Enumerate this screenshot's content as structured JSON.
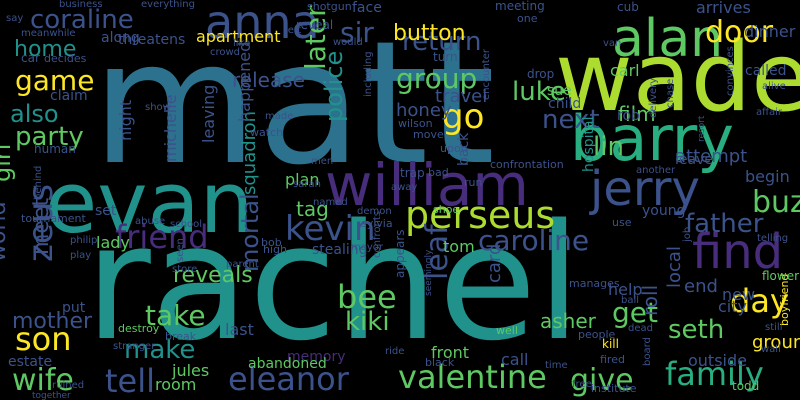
{
  "cloud": {
    "background": "#000000",
    "palette": [
      "#440154",
      "#472d7b",
      "#3b528b",
      "#2c728e",
      "#21918c",
      "#28ae80",
      "#5ec962",
      "#addc30",
      "#fde725"
    ],
    "words": [
      {
        "text": "matt",
        "color": "#2c728e"
      },
      {
        "text": "rachel",
        "color": "#21918c"
      },
      {
        "text": "wade",
        "color": "#addc30"
      },
      {
        "text": "evan",
        "color": "#21918c"
      },
      {
        "text": "william",
        "color": "#472d7b"
      },
      {
        "text": "barry",
        "color": "#28ae80"
      },
      {
        "text": "alan",
        "color": "#5ec962"
      },
      {
        "text": "anna",
        "color": "#3b528b"
      },
      {
        "text": "find",
        "color": "#472d7b"
      },
      {
        "text": "jerry",
        "color": "#3b528b"
      },
      {
        "text": "perseus",
        "color": "#addc30"
      },
      {
        "text": "family",
        "color": "#28ae80"
      },
      {
        "text": "eleanor",
        "color": "#3b528b"
      },
      {
        "text": "valentine",
        "color": "#5ec962"
      },
      {
        "text": "caroline",
        "color": "#3b528b"
      },
      {
        "text": "friend",
        "color": "#472d7b"
      },
      {
        "text": "kevin",
        "color": "#3b528b"
      },
      {
        "text": "zeus",
        "color": "#3b528b"
      },
      {
        "text": "son",
        "color": "#fde725"
      },
      {
        "text": "tell",
        "color": "#3b528b"
      },
      {
        "text": "wife",
        "color": "#5ec962"
      },
      {
        "text": "coraline",
        "color": "#3b528b"
      },
      {
        "text": "game",
        "color": "#fde725"
      },
      {
        "text": "home",
        "color": "#21918c"
      },
      {
        "text": "sir",
        "color": "#3b528b"
      },
      {
        "text": "return",
        "color": "#3b528b"
      },
      {
        "text": "door",
        "color": "#fde725"
      },
      {
        "text": "luke",
        "color": "#5ec962"
      },
      {
        "text": "group",
        "color": "#5ec962"
      },
      {
        "text": "later",
        "color": "#5ec962"
      },
      {
        "text": "go",
        "color": "#fde725"
      },
      {
        "text": "next",
        "color": "#3b528b"
      },
      {
        "text": "lin",
        "color": "#5ec962"
      },
      {
        "text": "police",
        "color": "#21918c"
      },
      {
        "text": "buzz",
        "color": "#5ec962"
      },
      {
        "text": "father",
        "color": "#3b528b"
      },
      {
        "text": "day",
        "color": "#fde725"
      },
      {
        "text": "seth",
        "color": "#5ec962"
      },
      {
        "text": "give",
        "color": "#5ec962"
      },
      {
        "text": "get",
        "color": "#5ec962"
      },
      {
        "text": "take",
        "color": "#5ec962"
      },
      {
        "text": "make",
        "color": "#21918c"
      },
      {
        "text": "mortal",
        "color": "#3b528b"
      },
      {
        "text": "bee",
        "color": "#5ec962"
      },
      {
        "text": "kiki",
        "color": "#5ec962"
      },
      {
        "text": "leaf",
        "color": "#3b528b"
      },
      {
        "text": "also",
        "color": "#21918c"
      },
      {
        "text": "party",
        "color": "#5ec962"
      },
      {
        "text": "girl",
        "color": "#5ec962"
      },
      {
        "text": "mother",
        "color": "#3b528b"
      },
      {
        "text": "world",
        "color": "#3b528b"
      },
      {
        "text": "meet",
        "color": "#3b528b"
      },
      {
        "text": "button",
        "color": "#fde725"
      },
      {
        "text": "apartment",
        "color": "#fde725"
      },
      {
        "text": "release",
        "color": "#3b528b"
      },
      {
        "text": "squadron",
        "color": "#21918c"
      },
      {
        "text": "reveals",
        "color": "#5ec962"
      },
      {
        "text": "asher",
        "color": "#5ec962"
      },
      {
        "text": "card",
        "color": "#3b528b"
      },
      {
        "text": "roll",
        "color": "#3b528b"
      },
      {
        "text": "end",
        "color": "#3b528b"
      },
      {
        "text": "ground",
        "color": "#fde725"
      },
      {
        "text": "local",
        "color": "#3b528b"
      },
      {
        "text": "honey",
        "color": "#3b528b"
      },
      {
        "text": "travel",
        "color": "#3b528b"
      },
      {
        "text": "film",
        "color": "#5ec962"
      },
      {
        "text": "carl",
        "color": "#5ec962"
      },
      {
        "text": "arrives",
        "color": "#3b528b"
      },
      {
        "text": "dinner",
        "color": "#3b528b"
      },
      {
        "text": "called",
        "color": "#3b528b"
      },
      {
        "text": "michelle",
        "color": "#3b528b"
      },
      {
        "text": "night",
        "color": "#3b528b"
      },
      {
        "text": "leaving",
        "color": "#3b528b"
      },
      {
        "text": "happened",
        "color": "#3b528b"
      },
      {
        "text": "tom",
        "color": "#5ec962"
      },
      {
        "text": "tag",
        "color": "#5ec962"
      },
      {
        "text": "plan",
        "color": "#5ec962"
      },
      {
        "text": "attempt",
        "color": "#3b528b"
      },
      {
        "text": "begin",
        "color": "#3b528b"
      },
      {
        "text": "leave",
        "color": "#3b528b"
      },
      {
        "text": "help",
        "color": "#3b528b"
      },
      {
        "text": "city",
        "color": "#3b528b"
      },
      {
        "text": "new",
        "color": "#3b528b"
      },
      {
        "text": "lady",
        "color": "#5ec962"
      },
      {
        "text": "put",
        "color": "#3b528b"
      },
      {
        "text": "set",
        "color": "#3b528b"
      },
      {
        "text": "jules",
        "color": "#5ec962"
      },
      {
        "text": "room",
        "color": "#5ec962"
      },
      {
        "text": "last",
        "color": "#3b528b"
      },
      {
        "text": "front",
        "color": "#5ec962"
      },
      {
        "text": "call",
        "color": "#3b528b"
      },
      {
        "text": "estate",
        "color": "#3b528b"
      },
      {
        "text": "memory",
        "color": "#472d7b"
      },
      {
        "text": "abandoned",
        "color": "#5ec962"
      },
      {
        "text": "destroy",
        "color": "#5ec962"
      },
      {
        "text": "break",
        "color": "#3b528b"
      },
      {
        "text": "stranger",
        "color": "#3b528b"
      },
      {
        "text": "ruined",
        "color": "#3b528b"
      },
      {
        "text": "together",
        "color": "#3b528b"
      },
      {
        "text": "free",
        "color": "#3b528b"
      },
      {
        "text": "time",
        "color": "#3b528b"
      },
      {
        "text": "black",
        "color": "#3b528b"
      },
      {
        "text": "well",
        "color": "#5ec962"
      },
      {
        "text": "people",
        "color": "#3b528b"
      },
      {
        "text": "kill",
        "color": "#fde725"
      },
      {
        "text": "fired",
        "color": "#3b528b"
      },
      {
        "text": "institute",
        "color": "#3b528b"
      },
      {
        "text": "board",
        "color": "#3b528b"
      },
      {
        "text": "outside",
        "color": "#3b528b"
      },
      {
        "text": "todd",
        "color": "#5ec962"
      },
      {
        "text": "boyfriend",
        "color": "#fde725"
      },
      {
        "text": "wall",
        "color": "#3b528b"
      },
      {
        "text": "still",
        "color": "#3b528b"
      },
      {
        "text": "flower",
        "color": "#5ec962"
      },
      {
        "text": "telling",
        "color": "#3b528b"
      },
      {
        "text": "job",
        "color": "#3b528b"
      },
      {
        "text": "young",
        "color": "#3b528b"
      },
      {
        "text": "use",
        "color": "#3b528b"
      },
      {
        "text": "hospital",
        "color": "#21918c"
      },
      {
        "text": "delivery",
        "color": "#3b528b"
      },
      {
        "text": "another",
        "color": "#3b528b"
      },
      {
        "text": "rob",
        "color": "#3b528b"
      },
      {
        "text": "sue",
        "color": "#5ec962"
      },
      {
        "text": "child",
        "color": "#3b528b"
      },
      {
        "text": "drop",
        "color": "#3b528b"
      },
      {
        "text": "back",
        "color": "#3b528b"
      },
      {
        "text": "confrontation",
        "color": "#3b528b"
      },
      {
        "text": "upon",
        "color": "#3b528b"
      },
      {
        "text": "move",
        "color": "#3b528b"
      },
      {
        "text": "including",
        "color": "#3b528b"
      },
      {
        "text": "wilson",
        "color": "#3b528b"
      },
      {
        "text": "encounter",
        "color": "#3b528b"
      },
      {
        "text": "men",
        "color": "#3b528b"
      },
      {
        "text": "bad",
        "color": "#3b528b"
      },
      {
        "text": "trap",
        "color": "#3b528b"
      },
      {
        "text": "run",
        "color": "#3b528b"
      },
      {
        "text": "away",
        "color": "#3b528b"
      },
      {
        "text": "shoe",
        "color": "#5ec962"
      },
      {
        "text": "demon",
        "color": "#3b528b"
      },
      {
        "text": "named",
        "color": "#3b528b"
      },
      {
        "text": "sarah",
        "color": "#3b528b"
      },
      {
        "text": "sylvia",
        "color": "#3b528b"
      },
      {
        "text": "mayor",
        "color": "#3b528b"
      },
      {
        "text": "stealing",
        "color": "#3b528b"
      },
      {
        "text": "confronts",
        "color": "#3b528b"
      },
      {
        "text": "appears",
        "color": "#3b528b"
      },
      {
        "text": "seemingly",
        "color": "#3b528b"
      },
      {
        "text": "ride",
        "color": "#3b528b"
      },
      {
        "text": "high",
        "color": "#3b528b"
      },
      {
        "text": "bob",
        "color": "#3b528b"
      },
      {
        "text": "parent",
        "color": "#3b528b"
      },
      {
        "text": "store",
        "color": "#3b528b"
      },
      {
        "text": "seen",
        "color": "#3b528b"
      },
      {
        "text": "school",
        "color": "#3b528b"
      },
      {
        "text": "abuse",
        "color": "#3b528b"
      },
      {
        "text": "tournament",
        "color": "#3b528b"
      },
      {
        "text": "philip",
        "color": "#3b528b"
      },
      {
        "text": "play",
        "color": "#3b528b"
      },
      {
        "text": "behind",
        "color": "#3b528b"
      },
      {
        "text": "human",
        "color": "#3b528b"
      },
      {
        "text": "claim",
        "color": "#3b528b"
      },
      {
        "text": "car",
        "color": "#3b528b"
      },
      {
        "text": "decides",
        "color": "#3b528b"
      },
      {
        "text": "meanwhile",
        "color": "#3b528b"
      },
      {
        "text": "say",
        "color": "#3b528b"
      },
      {
        "text": "business",
        "color": "#3b528b"
      },
      {
        "text": "everything",
        "color": "#3b528b"
      },
      {
        "text": "shotgun",
        "color": "#3b528b"
      },
      {
        "text": "face",
        "color": "#3b528b"
      },
      {
        "text": "meeting",
        "color": "#3b528b"
      },
      {
        "text": "one",
        "color": "#3b528b"
      },
      {
        "text": "cub",
        "color": "#3b528b"
      },
      {
        "text": "van",
        "color": "#3b528b"
      },
      {
        "text": "threatens",
        "color": "#3b528b"
      },
      {
        "text": "along",
        "color": "#3b528b"
      },
      {
        "text": "left",
        "color": "#3b528b"
      },
      {
        "text": "reveal",
        "color": "#3b528b"
      },
      {
        "text": "would",
        "color": "#3b528b"
      },
      {
        "text": "like",
        "color": "#3b528b"
      },
      {
        "text": "turn",
        "color": "#3b528b"
      },
      {
        "text": "crowd",
        "color": "#3b528b"
      },
      {
        "text": "made",
        "color": "#3b528b"
      },
      {
        "text": "watch",
        "color": "#3b528b"
      },
      {
        "text": "show",
        "color": "#3b528b"
      },
      {
        "text": "chase",
        "color": "#3b528b"
      },
      {
        "text": "convinces",
        "color": "#3b528b"
      },
      {
        "text": "alive",
        "color": "#3b528b"
      },
      {
        "text": "affair",
        "color": "#3b528b"
      },
      {
        "text": "resort",
        "color": "#3b528b"
      },
      {
        "text": "manages",
        "color": "#3b528b"
      },
      {
        "text": "dead",
        "color": "#3b528b"
      },
      {
        "text": "ball",
        "color": "#3b528b"
      }
    ]
  }
}
